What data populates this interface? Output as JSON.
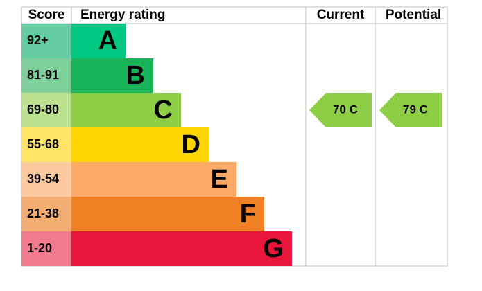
{
  "chart_data": {
    "type": "epc",
    "headers": {
      "score": "Score",
      "rating": "Energy rating"
    },
    "bands": [
      {
        "range": "92+",
        "min": 92,
        "letter": "A",
        "color": "#00c781",
        "score_color": "#66cca3"
      },
      {
        "range": "81-91",
        "min": 81,
        "letter": "B",
        "color": "#19b459",
        "score_color": "#7fcf9a"
      },
      {
        "range": "69-80",
        "min": 69,
        "letter": "C",
        "color": "#8dce46",
        "score_color": "#bbe08f"
      },
      {
        "range": "55-68",
        "min": 55,
        "letter": "D",
        "color": "#ffd500",
        "score_color": "#ffe466"
      },
      {
        "range": "39-54",
        "min": 39,
        "letter": "E",
        "color": "#fcaa65",
        "score_color": "#fdcaa0"
      },
      {
        "range": "21-38",
        "min": 21,
        "letter": "F",
        "color": "#ef8023",
        "score_color": "#f4ad72"
      },
      {
        "range": "1-20",
        "min": 1,
        "letter": "G",
        "color": "#e9153b",
        "score_color": "#f07b8f"
      }
    ],
    "series": [
      {
        "name": "Current",
        "values": [
          70
        ],
        "value_labels": [
          "70 C"
        ],
        "color": "#8dce46"
      },
      {
        "name": "Potential",
        "values": [
          79
        ],
        "value_labels": [
          "79 C"
        ],
        "color": "#8dce46"
      }
    ]
  }
}
